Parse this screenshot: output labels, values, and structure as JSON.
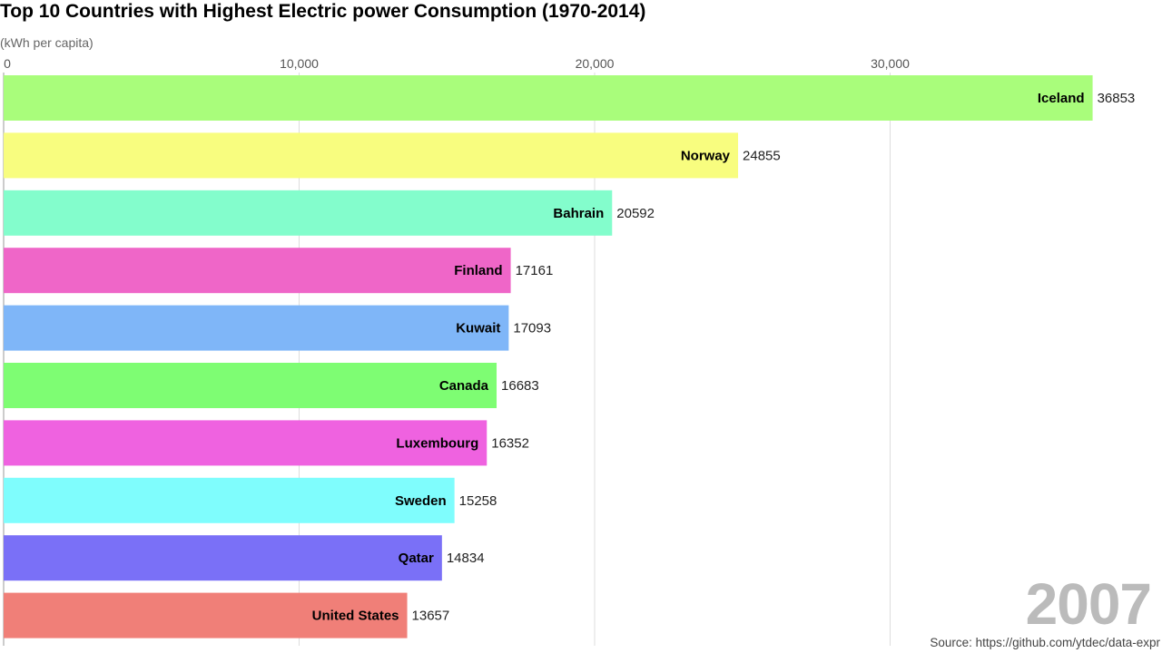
{
  "chart_data": {
    "type": "bar",
    "orientation": "horizontal",
    "title": "Top 10 Countries with Highest Electric power Consumption (1970-2014)",
    "unit_label": "(kWh per capita)",
    "year": "2007",
    "source": "Source: https://github.com/ytdec/data-expr",
    "xlim": [
      0,
      36853
    ],
    "x_ticks": [
      0,
      10000,
      20000,
      30000
    ],
    "x_tick_labels": [
      "0",
      "10,000",
      "20,000",
      "30,000"
    ],
    "grid": true,
    "categories": [
      "Iceland",
      "Norway",
      "Bahrain",
      "Finland",
      "Kuwait",
      "Canada",
      "Luxembourg",
      "Sweden",
      "Qatar",
      "United States"
    ],
    "values": [
      36853,
      24855,
      20592,
      17161,
      17093,
      16683,
      16352,
      15258,
      14834,
      13657
    ],
    "value_labels": [
      "36853",
      "24855",
      "20592",
      "17161",
      "17093",
      "16683",
      "16352",
      "15258",
      "14834",
      "13657"
    ],
    "colors": [
      "#a9fd7b",
      "#f8fd7f",
      "#83fdcc",
      "#ef66c8",
      "#7fb6f8",
      "#7efd73",
      "#ef62e0",
      "#7ffdfd",
      "#7a70f7",
      "#f07f78"
    ]
  }
}
